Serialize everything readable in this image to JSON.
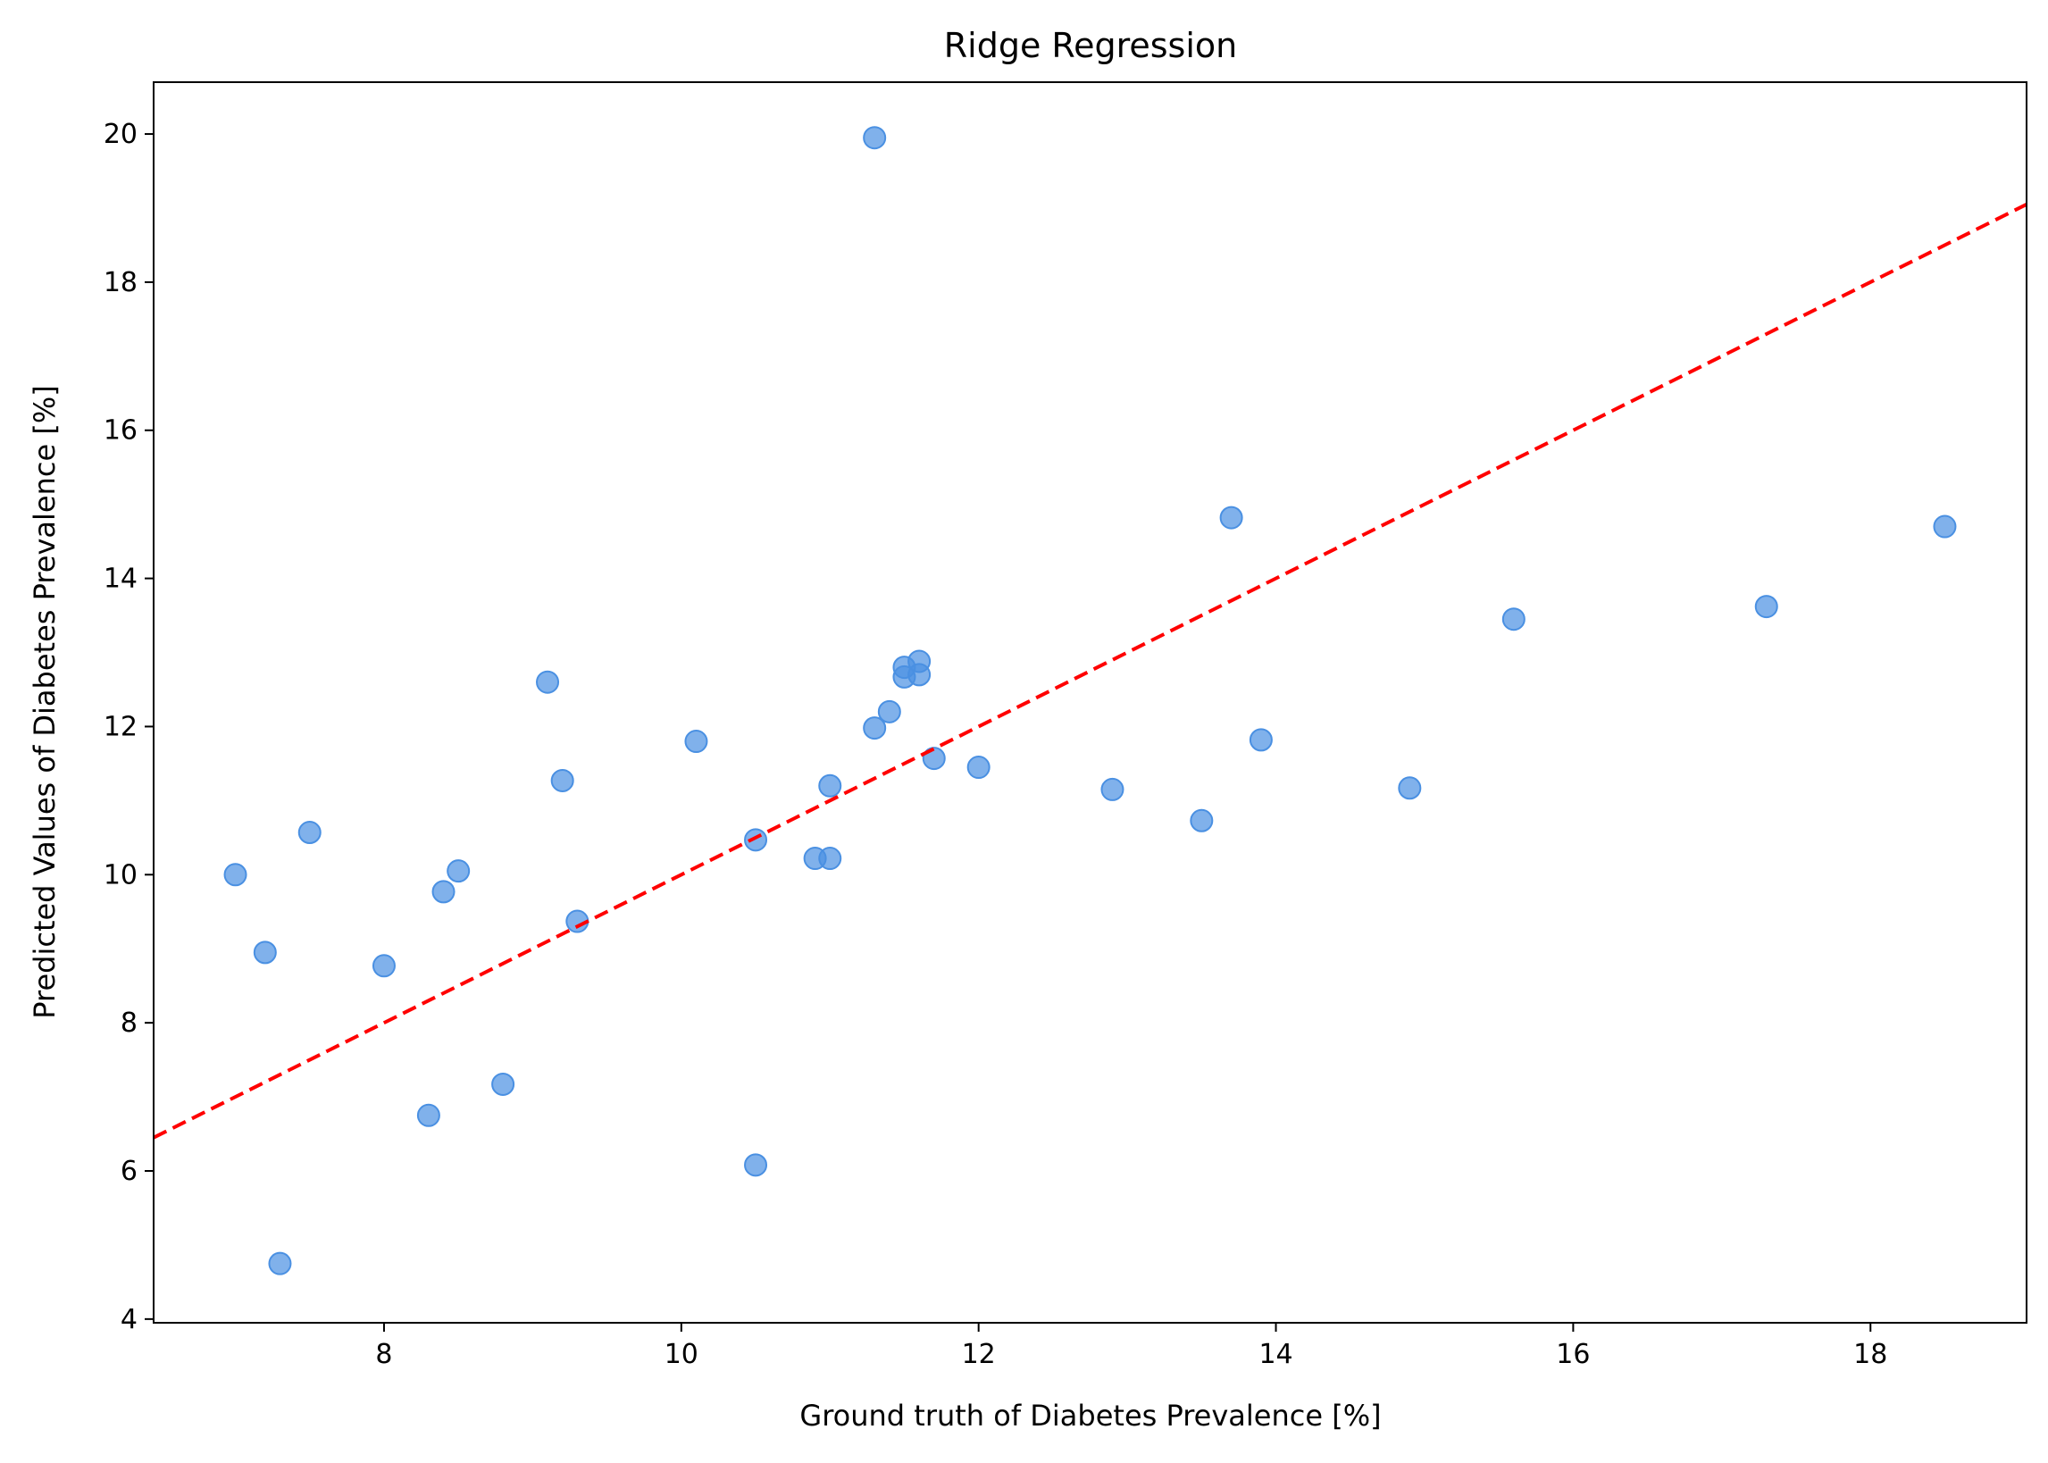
{
  "chart_data": {
    "type": "scatter",
    "title": "Ridge Regression",
    "xlabel": "Ground truth of Diabetes Prevalence [%]",
    "ylabel": "Predicted Values of Diabetes Prevalence [%]",
    "xlim": [
      6.45,
      19.05
    ],
    "ylim": [
      3.95,
      20.7
    ],
    "xticks": [
      8,
      10,
      12,
      14,
      16,
      18
    ],
    "yticks": [
      4,
      6,
      8,
      10,
      12,
      14,
      16,
      18,
      20
    ],
    "grid": false,
    "point_color": "#4a90e2",
    "line_color": "#ff0000",
    "reference_line": {
      "style": "dashed",
      "x": [
        6.45,
        19.05
      ],
      "y": [
        6.45,
        19.05
      ]
    },
    "points": [
      {
        "x": 7.0,
        "y": 10.0
      },
      {
        "x": 7.2,
        "y": 8.95
      },
      {
        "x": 7.3,
        "y": 4.75
      },
      {
        "x": 7.5,
        "y": 10.57
      },
      {
        "x": 8.0,
        "y": 8.77
      },
      {
        "x": 8.3,
        "y": 6.75
      },
      {
        "x": 8.4,
        "y": 9.77
      },
      {
        "x": 8.5,
        "y": 10.05
      },
      {
        "x": 8.8,
        "y": 7.17
      },
      {
        "x": 9.1,
        "y": 12.6
      },
      {
        "x": 9.2,
        "y": 11.27
      },
      {
        "x": 9.3,
        "y": 9.37
      },
      {
        "x": 10.1,
        "y": 11.8
      },
      {
        "x": 10.5,
        "y": 10.47
      },
      {
        "x": 10.5,
        "y": 6.08
      },
      {
        "x": 10.9,
        "y": 10.22
      },
      {
        "x": 11.0,
        "y": 10.22
      },
      {
        "x": 11.0,
        "y": 11.2
      },
      {
        "x": 11.3,
        "y": 11.98
      },
      {
        "x": 11.3,
        "y": 19.95
      },
      {
        "x": 11.4,
        "y": 12.2
      },
      {
        "x": 11.5,
        "y": 12.8
      },
      {
        "x": 11.5,
        "y": 12.67
      },
      {
        "x": 11.6,
        "y": 12.88
      },
      {
        "x": 11.6,
        "y": 12.7
      },
      {
        "x": 11.7,
        "y": 11.57
      },
      {
        "x": 12.0,
        "y": 11.45
      },
      {
        "x": 12.9,
        "y": 11.15
      },
      {
        "x": 13.5,
        "y": 10.73
      },
      {
        "x": 13.7,
        "y": 14.82
      },
      {
        "x": 13.9,
        "y": 11.82
      },
      {
        "x": 14.9,
        "y": 11.17
      },
      {
        "x": 15.6,
        "y": 13.45
      },
      {
        "x": 17.3,
        "y": 13.62
      },
      {
        "x": 18.5,
        "y": 14.7
      }
    ]
  }
}
